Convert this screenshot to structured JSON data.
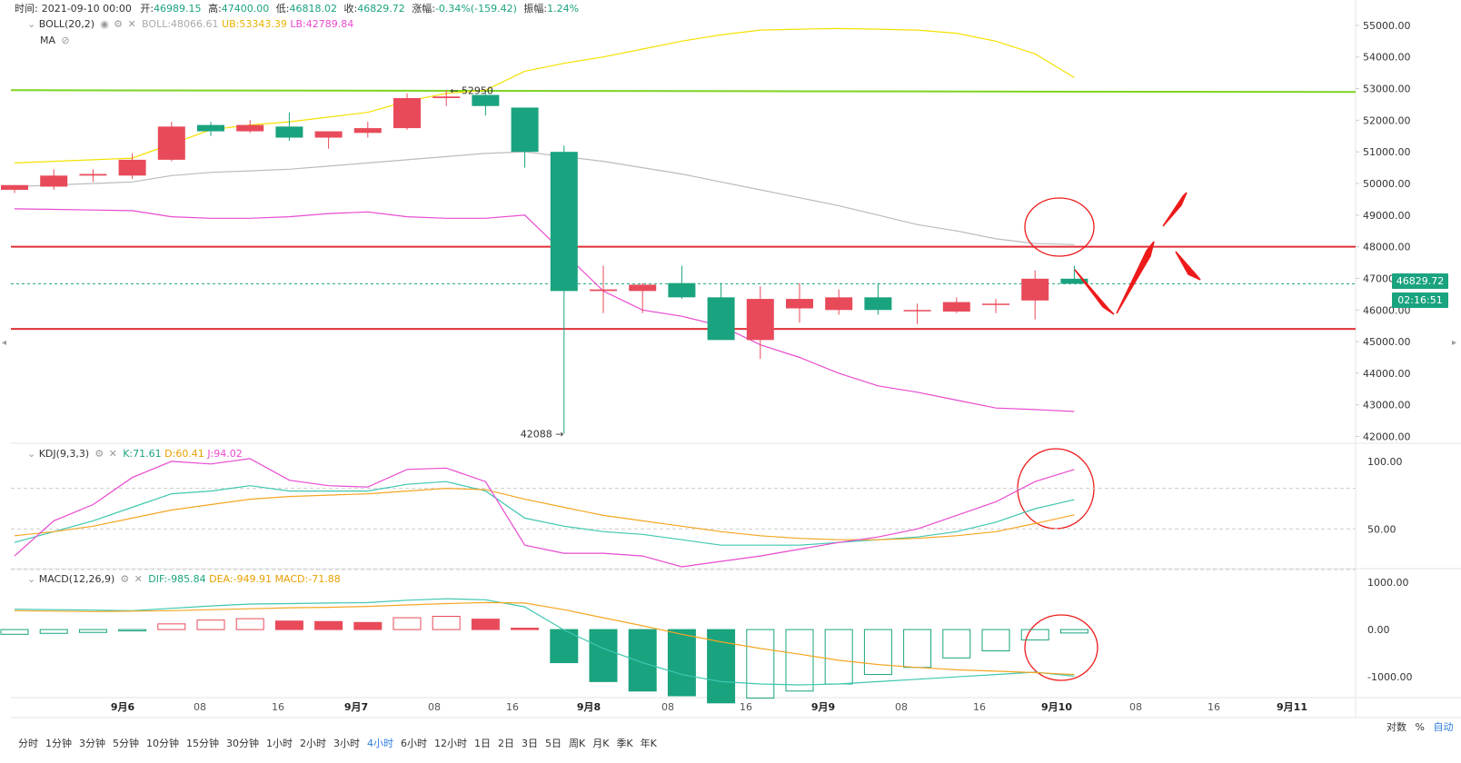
{
  "header": {
    "time_label": "时间:",
    "time": "2021-09-10 00:00",
    "open_label": "开:",
    "open": "46989.15",
    "high_label": "高:",
    "high": "47400.00",
    "low_label": "低:",
    "low": "46818.02",
    "close_label": "收:",
    "close": "46829.72",
    "change_label": "涨幅:",
    "change": "-0.34%(-159.42)",
    "amp_label": "振幅:",
    "amp": "1.24%"
  },
  "boll_overlay": {
    "name": "BOLL(20,2)",
    "boll": "BOLL:48066.61",
    "ub": "UB:53343.39",
    "lb": "LB:42789.84",
    "ma": "MA"
  },
  "kdj_overlay": {
    "name": "KDJ(9,3,3)",
    "k": "K:71.61",
    "d": "D:60.41",
    "j": "J:94.02"
  },
  "macd_overlay": {
    "name": "MACD(12,26,9)",
    "dif": "DIF:-985.84",
    "dea": "DEA:-949.91",
    "macd": "MACD:-71.88"
  },
  "current_price": "46829.72",
  "countdown": "02:16:51",
  "timeframes": [
    "分时",
    "1分钟",
    "3分钟",
    "5分钟",
    "10分钟",
    "15分钟",
    "30分钟",
    "1小时",
    "2小时",
    "3小时",
    "4小时",
    "6小时",
    "12小时",
    "1日",
    "2日",
    "3日",
    "5日",
    "周K",
    "月K",
    "季K",
    "年K"
  ],
  "active_timeframe": "4小时",
  "axis_options": {
    "log": "对数",
    "pct": "%",
    "auto": "自动"
  },
  "colors": {
    "up": "#e84a5a",
    "down": "#1aa37f",
    "ub": "#f5e000",
    "mid": "#bbbbbb",
    "lb": "#e84ad0",
    "hline_green": "#7ed321",
    "hline_red": "#e0303a",
    "k": "#3fc7b0",
    "d": "#f5a623",
    "j": "#e84ad0",
    "annot": "#ee1a1a"
  },
  "chart_data": [
    {
      "type": "candlestick",
      "title": "",
      "x_labels": [
        "9月6",
        "08",
        "16",
        "9月7",
        "08",
        "16",
        "9月8",
        "08",
        "16",
        "9月9",
        "08",
        "16",
        "9月10",
        "08",
        "16",
        "9月11"
      ],
      "yticks": [
        "55000.00",
        "54000.00",
        "53000.00",
        "52000.00",
        "51000.00",
        "50000.00",
        "49000.00",
        "48000.00",
        "47000.00",
        "46000.00",
        "45000.00",
        "44000.00",
        "43000.00",
        "42000.00"
      ],
      "ylim": [
        41900,
        55400
      ],
      "candles": [
        {
          "o": 49800,
          "h": 49950,
          "l": 49700,
          "c": 49950
        },
        {
          "o": 49900,
          "h": 50450,
          "l": 49800,
          "c": 50250
        },
        {
          "o": 50250,
          "h": 50450,
          "l": 50050,
          "c": 50300
        },
        {
          "o": 50250,
          "h": 50950,
          "l": 50150,
          "c": 50750
        },
        {
          "o": 50750,
          "h": 51950,
          "l": 50700,
          "c": 51800
        },
        {
          "o": 51850,
          "h": 51950,
          "l": 51500,
          "c": 51650
        },
        {
          "o": 51650,
          "h": 52000,
          "l": 51600,
          "c": 51850
        },
        {
          "o": 51800,
          "h": 52250,
          "l": 51350,
          "c": 51450
        },
        {
          "o": 51450,
          "h": 51650,
          "l": 51100,
          "c": 51650
        },
        {
          "o": 51600,
          "h": 51950,
          "l": 51450,
          "c": 51750
        },
        {
          "o": 51750,
          "h": 52850,
          "l": 51700,
          "c": 52700
        },
        {
          "o": 52700,
          "h": 52950,
          "l": 52450,
          "c": 52750
        },
        {
          "o": 52800,
          "h": 52850,
          "l": 52150,
          "c": 52450
        },
        {
          "o": 52400,
          "h": 52400,
          "l": 50500,
          "c": 51000
        },
        {
          "o": 51000,
          "h": 51200,
          "l": 42088,
          "c": 46600
        },
        {
          "o": 46600,
          "h": 47400,
          "l": 45900,
          "c": 46650
        },
        {
          "o": 46600,
          "h": 46850,
          "l": 45900,
          "c": 46800
        },
        {
          "o": 46850,
          "h": 47400,
          "l": 46350,
          "c": 46400
        },
        {
          "o": 46400,
          "h": 46850,
          "l": 45050,
          "c": 45050
        },
        {
          "o": 45050,
          "h": 46750,
          "l": 44450,
          "c": 46350
        },
        {
          "o": 46050,
          "h": 46850,
          "l": 45600,
          "c": 46350
        },
        {
          "o": 46000,
          "h": 46650,
          "l": 45850,
          "c": 46400
        },
        {
          "o": 46400,
          "h": 46850,
          "l": 45850,
          "c": 46000
        },
        {
          "o": 46000,
          "h": 46200,
          "l": 45550,
          "c": 46000
        },
        {
          "o": 45950,
          "h": 46400,
          "l": 45900,
          "c": 46250
        },
        {
          "o": 46200,
          "h": 46350,
          "l": 45900,
          "c": 46200
        },
        {
          "o": 46300,
          "h": 47250,
          "l": 45700,
          "c": 46989
        },
        {
          "o": 46989,
          "h": 47400,
          "l": 46818,
          "c": 46830
        }
      ],
      "ub": [
        50650,
        50700,
        50750,
        50800,
        51250,
        51700,
        51850,
        51950,
        52100,
        52250,
        52600,
        52850,
        52950,
        53550,
        53800,
        54000,
        54250,
        54500,
        54700,
        54850,
        54880,
        54900,
        54880,
        54850,
        54750,
        54500,
        54100,
        53350
      ],
      "mid": [
        49900,
        49950,
        50000,
        50050,
        50250,
        50350,
        50400,
        50450,
        50550,
        50650,
        50750,
        50850,
        50950,
        51000,
        50850,
        50700,
        50500,
        50300,
        50050,
        49800,
        49550,
        49300,
        49000,
        48700,
        48500,
        48250,
        48100,
        48066
      ],
      "lb": [
        49200,
        49180,
        49160,
        49140,
        48950,
        48900,
        48900,
        48950,
        49050,
        49100,
        48950,
        48900,
        48900,
        49000,
        47800,
        46600,
        46000,
        45800,
        45500,
        44900,
        44500,
        44000,
        43600,
        43400,
        43150,
        42900,
        42850,
        42790
      ],
      "hlines": [
        52950,
        48000,
        45400
      ],
      "annotations": {
        "high": "52950",
        "low": "42088"
      }
    },
    {
      "type": "line",
      "title": "KDJ(9,3,3)",
      "yticks": [
        "100.00",
        "50.00"
      ],
      "ylim": [
        22,
        112
      ],
      "k": [
        40,
        48,
        56,
        66,
        76,
        78,
        82,
        78,
        78,
        78,
        83,
        85,
        78,
        58,
        52,
        48,
        46,
        42,
        38,
        38,
        38,
        40,
        42,
        44,
        48,
        55,
        65,
        71.61
      ],
      "d": [
        45,
        48,
        52,
        58,
        64,
        68,
        72,
        74,
        75,
        76,
        78,
        80,
        79,
        72,
        66,
        60,
        56,
        52,
        48,
        45,
        43,
        42,
        42,
        43,
        45,
        48,
        54,
        60.41
      ],
      "j": [
        30,
        56,
        68,
        88,
        100,
        98,
        102,
        86,
        82,
        81,
        94,
        95,
        85,
        38,
        32,
        32,
        30,
        22,
        26,
        30,
        35,
        40,
        44,
        50,
        60,
        70,
        85,
        94.02
      ]
    },
    {
      "type": "bar",
      "title": "MACD(12,26,9)",
      "yticks": [
        "1000.00",
        "0.00",
        "-1000.00"
      ],
      "ylim": [
        -1400,
        1250
      ],
      "macd": [
        -100,
        -80,
        -60,
        -20,
        120,
        200,
        230,
        180,
        170,
        150,
        250,
        280,
        220,
        30,
        -700,
        -1100,
        -1300,
        -1400,
        -1550,
        -1450,
        -1300,
        -1150,
        -950,
        -800,
        -600,
        -450,
        -220,
        -72
      ],
      "dif": [
        430,
        420,
        410,
        400,
        450,
        500,
        540,
        550,
        560,
        570,
        620,
        650,
        630,
        480,
        -10,
        -400,
        -700,
        -950,
        -1100,
        -1150,
        -1170,
        -1150,
        -1100,
        -1050,
        -1000,
        -950,
        -900,
        -985.84
      ],
      "dea": [
        400,
        390,
        380,
        390,
        400,
        420,
        440,
        460,
        470,
        490,
        520,
        550,
        570,
        560,
        420,
        250,
        80,
        -100,
        -260,
        -400,
        -520,
        -650,
        -740,
        -800,
        -850,
        -880,
        -910,
        -949.91
      ]
    }
  ]
}
